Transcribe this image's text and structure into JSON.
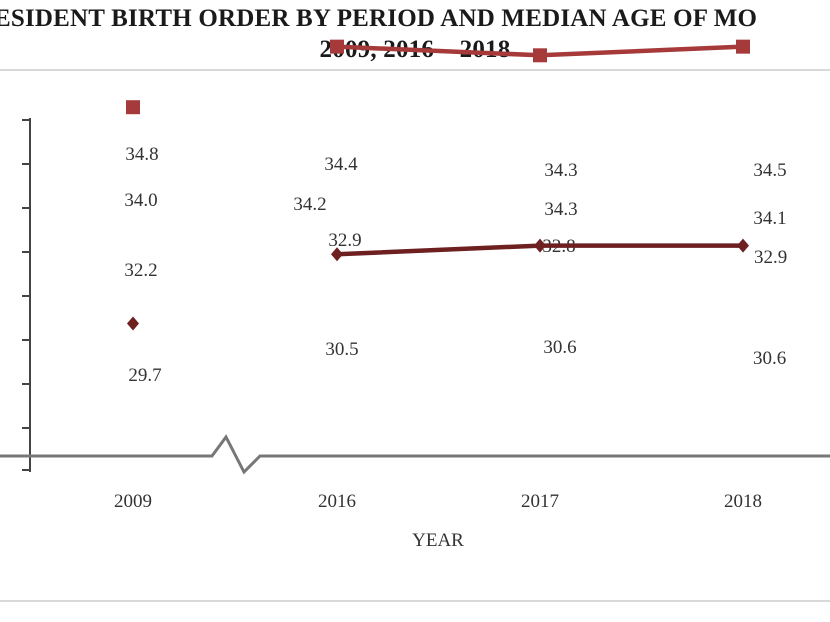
{
  "title": {
    "line1": "ESIDENT BIRTH ORDER BY PERIOD AND MEDIAN AGE OF MO",
    "line2": "2009, 2016 – 2018"
  },
  "chart_data": {
    "type": "line",
    "title": "ESIDENT BIRTH ORDER BY PERIOD AND MEDIAN AGE OF MO 2009, 2016 – 2018",
    "xlabel": "YEAR",
    "ylabel": "",
    "categories": [
      "2009",
      "2016",
      "2017",
      "2018"
    ],
    "axis_break": "between 2009 and 2016",
    "ylim": [
      28.0,
      35.5
    ],
    "grid": false,
    "series": [
      {
        "values": [
          34.8,
          34.4,
          34.3,
          34.5
        ],
        "color": "#e8b9b9",
        "marker": "square"
      },
      {
        "values": [
          34.0,
          34.2,
          34.3,
          34.1
        ],
        "color": "#d98c8c",
        "marker": "triangle"
      },
      {
        "values": [
          32.2,
          32.9,
          32.8,
          32.9
        ],
        "color": "#a63a3a",
        "marker": "square"
      },
      {
        "values": [
          29.7,
          30.5,
          30.6,
          30.6
        ],
        "color": "#6e1f1f",
        "marker": "diamond"
      }
    ]
  }
}
